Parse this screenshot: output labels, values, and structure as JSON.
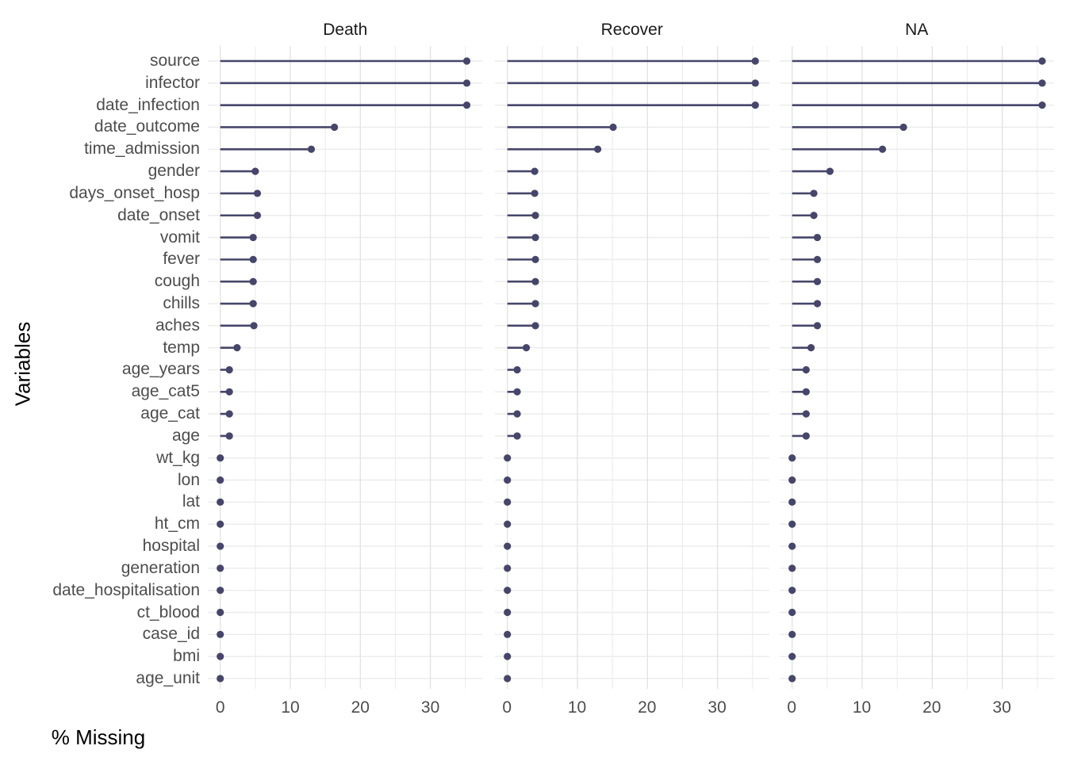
{
  "chart_data": {
    "type": "lollipop",
    "title": "",
    "xlabel": "% Missing",
    "ylabel": "Variables",
    "legend": "none",
    "grid": "light-gray major and minor, white background (ggplot theme_minimal)",
    "x_ticks": [
      0,
      10,
      20,
      30
    ],
    "x_minor_gridline_step": 5,
    "xlim": [
      -1.8,
      37.7
    ],
    "point_color": "#46466b",
    "gridline_major_color": "#e3e3e3",
    "gridline_minor_color": "#ececec",
    "row_gridline_color": "#ebebeb",
    "categories": [
      "source",
      "infector",
      "date_infection",
      "date_outcome",
      "time_admission",
      "gender",
      "days_onset_hosp",
      "date_onset",
      "vomit",
      "fever",
      "cough",
      "chills",
      "aches",
      "temp",
      "age_years",
      "age_cat5",
      "age_cat",
      "age",
      "wt_kg",
      "lon",
      "lat",
      "ht_cm",
      "hospital",
      "generation",
      "date_hospitalisation",
      "ct_blood",
      "case_id",
      "bmi",
      "age_unit"
    ],
    "facets": [
      {
        "name": "Death",
        "values": [
          35.2,
          35.2,
          35.2,
          16.3,
          13.0,
          5.0,
          5.3,
          5.3,
          4.7,
          4.7,
          4.7,
          4.7,
          4.8,
          2.4,
          1.3,
          1.3,
          1.3,
          1.3,
          0,
          0,
          0,
          0,
          0,
          0,
          0,
          0,
          0,
          0,
          0
        ]
      },
      {
        "name": "Recover",
        "values": [
          35.4,
          35.4,
          35.4,
          15.1,
          12.9,
          3.9,
          3.9,
          4.0,
          4.0,
          4.0,
          4.0,
          4.0,
          4.0,
          2.7,
          1.4,
          1.4,
          1.4,
          1.4,
          0,
          0,
          0,
          0,
          0,
          0,
          0,
          0,
          0,
          0,
          0
        ]
      },
      {
        "name": "NA",
        "values": [
          35.7,
          35.7,
          35.7,
          15.9,
          12.9,
          5.4,
          3.1,
          3.1,
          3.6,
          3.6,
          3.6,
          3.6,
          3.6,
          2.7,
          2.0,
          2.0,
          2.0,
          2.0,
          0,
          0,
          0,
          0,
          0,
          0,
          0,
          0,
          0,
          0,
          0
        ]
      }
    ]
  }
}
